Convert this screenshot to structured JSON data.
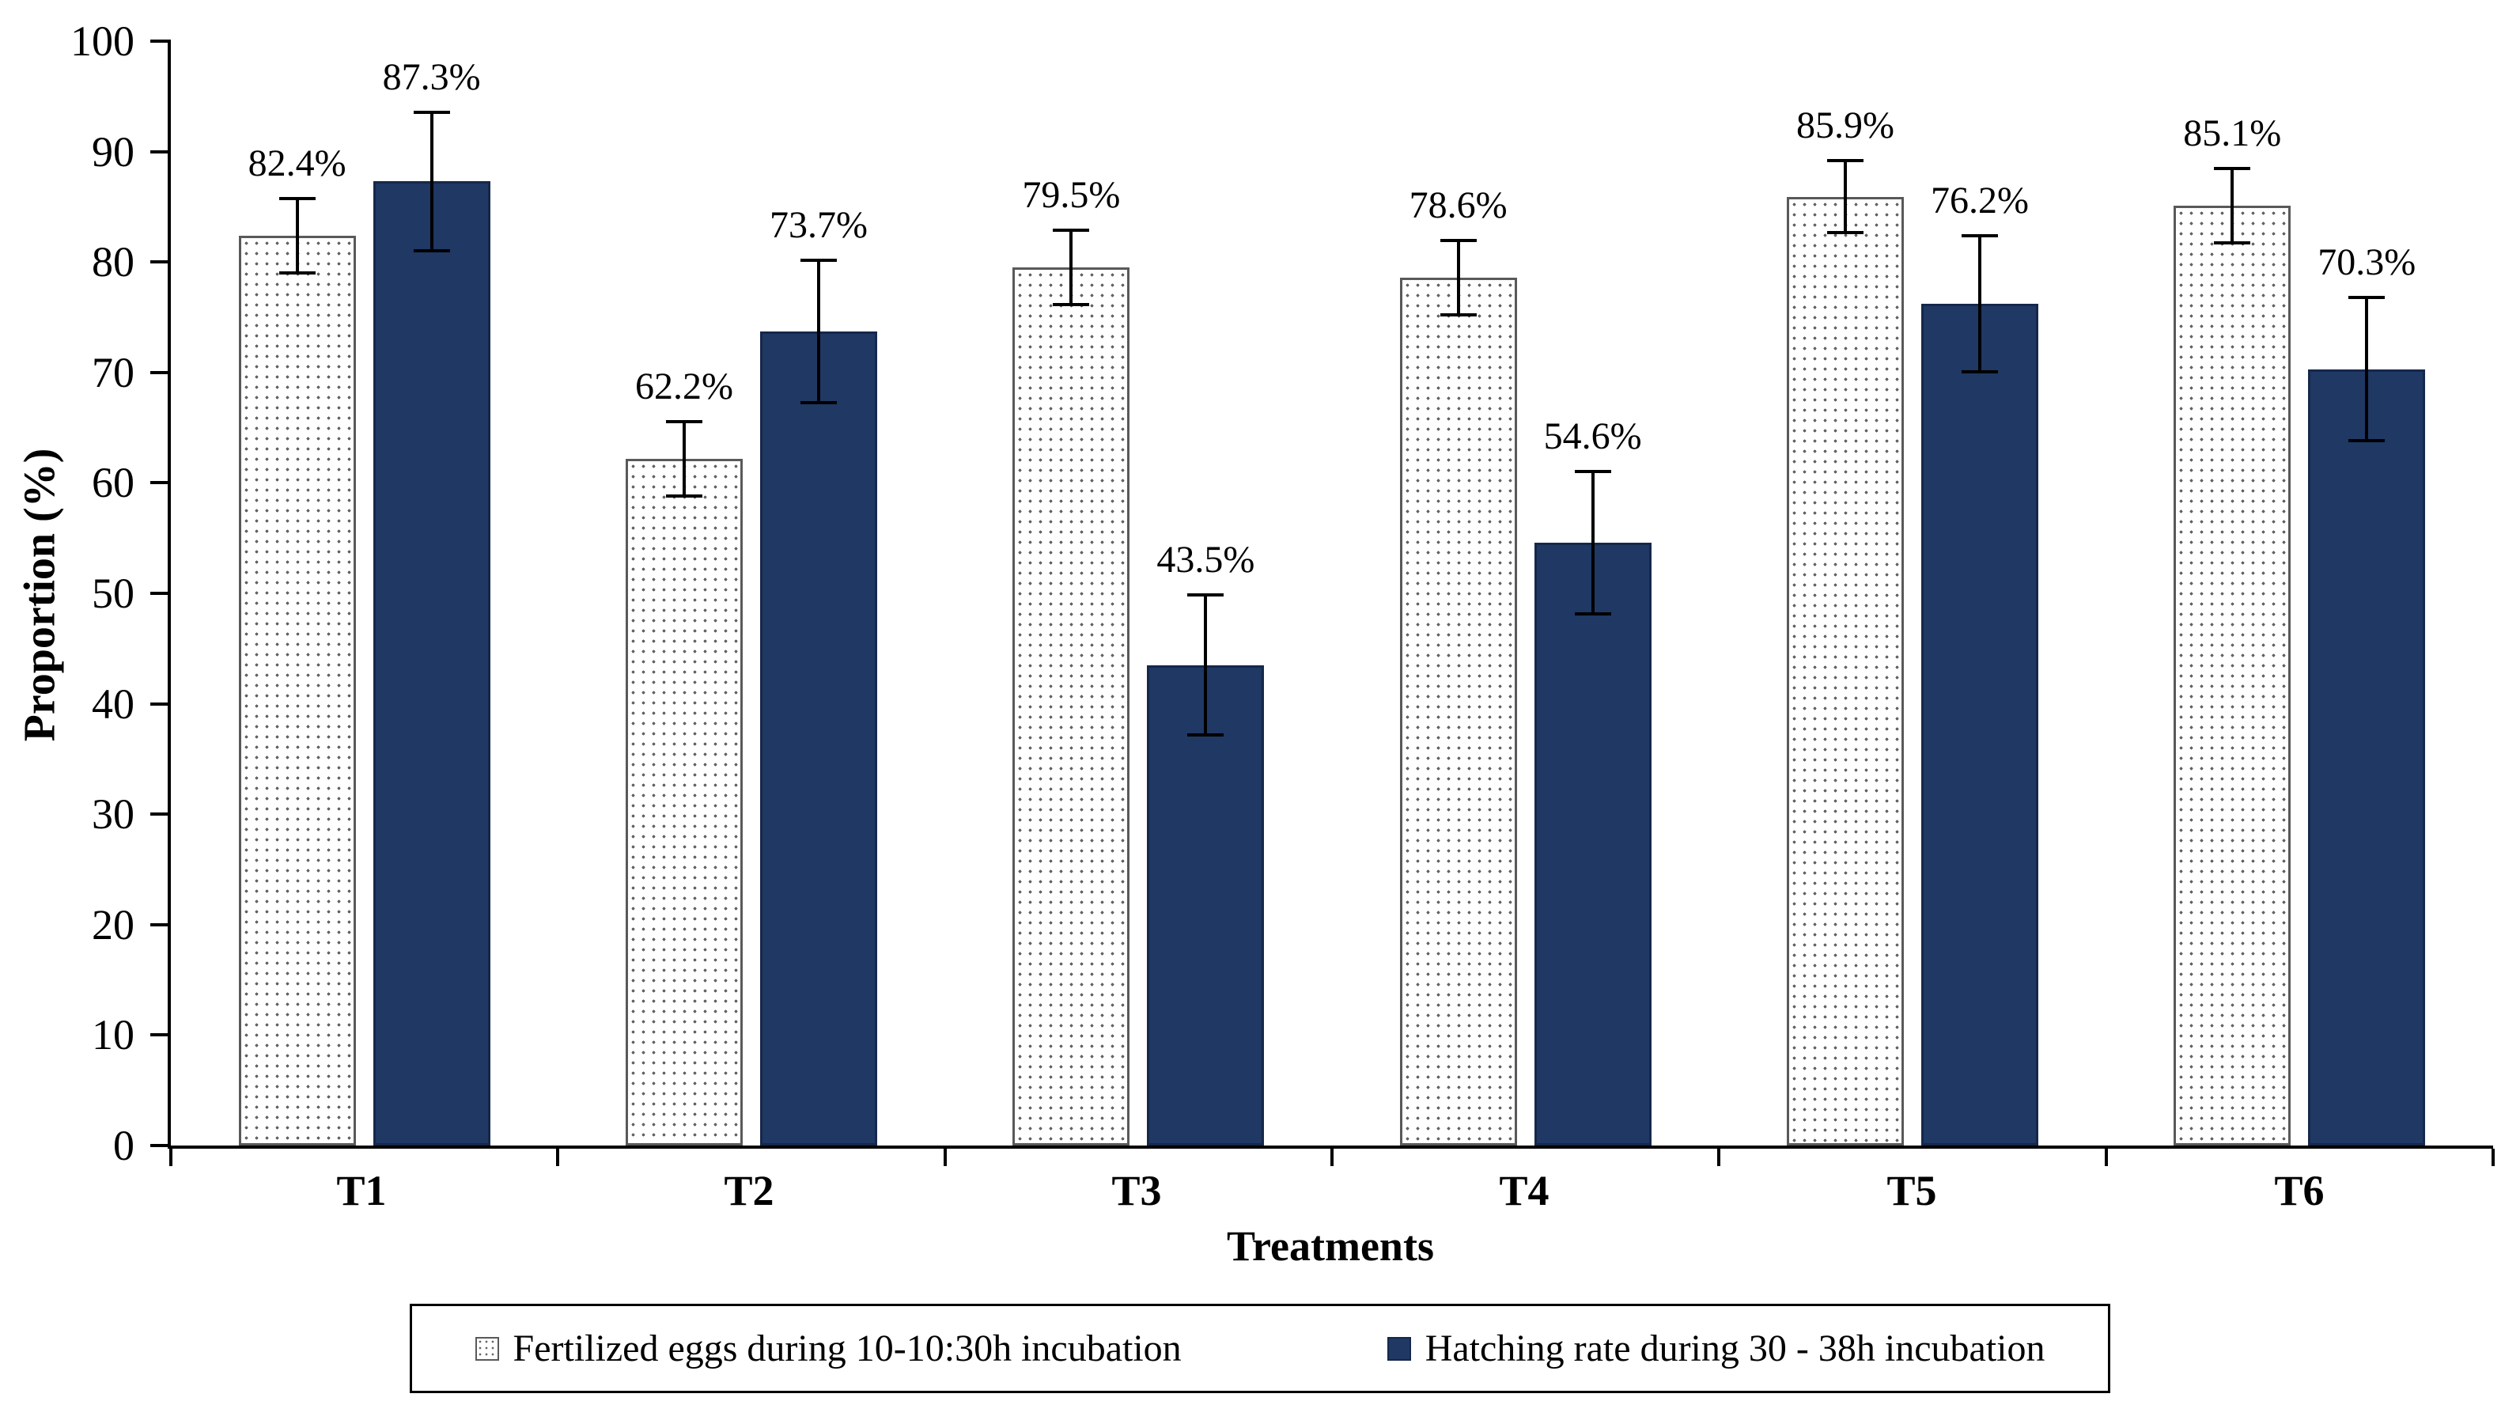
{
  "chart_data": {
    "type": "bar",
    "title": "",
    "xlabel": "Treatments",
    "ylabel": "Proportion (%)",
    "ylim": [
      0,
      100
    ],
    "ytick_step": 10,
    "grid": false,
    "legend_position": "bottom",
    "categories": [
      "T1",
      "T2",
      "T3",
      "T4",
      "T5",
      "T6"
    ],
    "series": [
      {
        "name": "Fertilized eggs during 10-10:30h incubation",
        "style": "dotted-white",
        "values": [
          82.4,
          62.2,
          79.5,
          78.6,
          85.9,
          85.1
        ],
        "errors": [
          3.5,
          3.5,
          3.5,
          3.5,
          3.4,
          3.5
        ],
        "labels": [
          "82.4%",
          "62.2%",
          "79.5%",
          "78.6%",
          "85.9%",
          "85.1%"
        ]
      },
      {
        "name": "Hatching rate during 30 - 38h incubation",
        "style": "solid-navy",
        "values": [
          87.3,
          73.7,
          43.5,
          54.6,
          76.2,
          70.3
        ],
        "errors": [
          6.4,
          6.6,
          6.5,
          6.6,
          6.3,
          6.6
        ],
        "labels": [
          "87.3%",
          "73.7%",
          "43.5%",
          "54.6%",
          "76.2%",
          "70.3%"
        ]
      }
    ],
    "colors": {
      "bar_fill_light": "#ffffff",
      "bar_dot": "#666666",
      "bar_border_light": "#595959",
      "bar_fill_dark": "#1f3864",
      "bar_border_dark": "#16284a",
      "axis": "#000000"
    }
  }
}
